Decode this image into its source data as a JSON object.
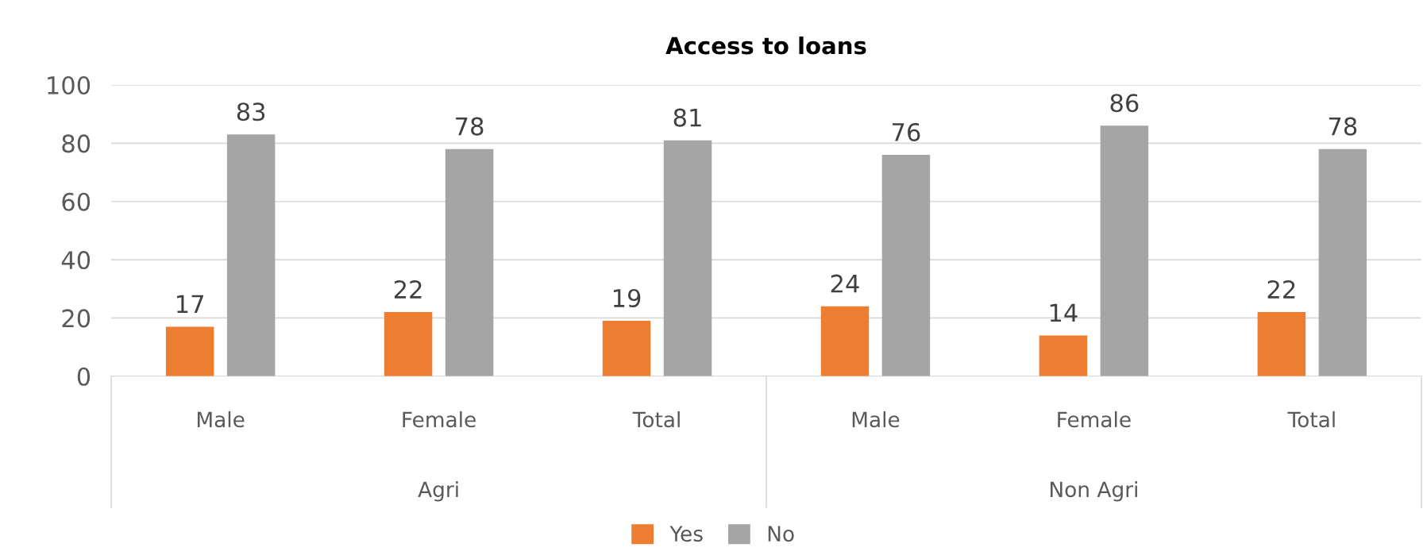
{
  "chart_data": {
    "type": "bar",
    "title": "Access to loans",
    "categories": [
      "Male",
      "Female",
      "Total",
      "Male",
      "Female",
      "Total"
    ],
    "annotations": [
      "Agri",
      "Non Agri"
    ],
    "series": [
      {
        "name": "Yes",
        "color": "#ed7d31",
        "values": [
          17,
          22,
          19,
          24,
          14,
          22
        ]
      },
      {
        "name": "No",
        "color": "#a5a5a5",
        "values": [
          83,
          78,
          81,
          76,
          86,
          78
        ]
      }
    ],
    "ylim": [
      0,
      100
    ],
    "yticks": [
      0,
      20,
      40,
      60,
      80,
      100
    ],
    "grid": "y",
    "legend": "bottom",
    "data_labels": true
  }
}
